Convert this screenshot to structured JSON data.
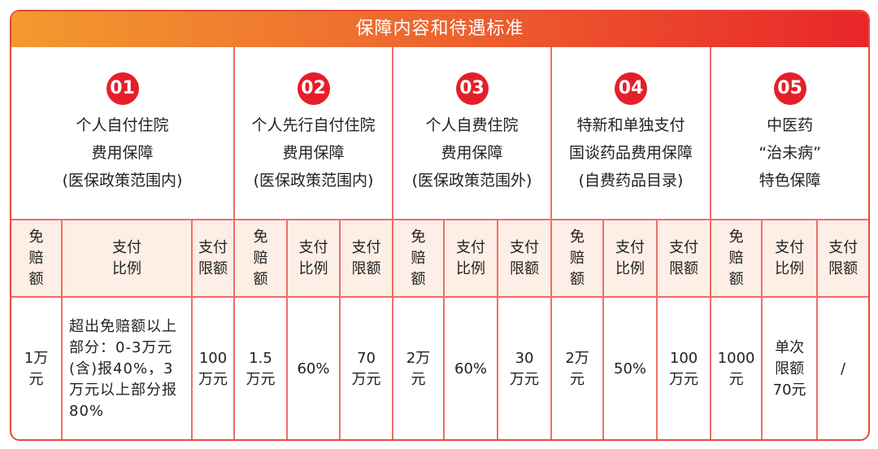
{
  "title": "保障内容和待遇标准",
  "categories": [
    {
      "num": "01",
      "lines": [
        "个人自付住院",
        "费用保障",
        "(医保政策范围内)"
      ]
    },
    {
      "num": "02",
      "lines": [
        "个人先行自付住院",
        "费用保障",
        "(医保政策范围内)"
      ]
    },
    {
      "num": "03",
      "lines": [
        "个人自费住院",
        "费用保障",
        "(医保政策范围外)"
      ]
    },
    {
      "num": "04",
      "lines": [
        "特新和单独支付",
        "国谈药品费用保障",
        "(自费药品目录)"
      ]
    },
    {
      "num": "05",
      "lines": [
        "中医药",
        "“治未病”",
        "特色保障"
      ]
    }
  ],
  "subheaders": {
    "deductible": [
      "免",
      "赔",
      "额"
    ],
    "ratio": [
      "支付",
      "比例"
    ],
    "limit": [
      "支付",
      "限额"
    ]
  },
  "values": {
    "c1": {
      "deductible": [
        "1万",
        "元"
      ],
      "ratio": "超出免赔额以上部分：0-3万元(含)报40%，3万元以上部分报80%",
      "limit": [
        "100",
        "万元"
      ]
    },
    "c2": {
      "deductible": [
        "1.5",
        "万元"
      ],
      "ratio": [
        "60%"
      ],
      "limit": [
        "70",
        "万元"
      ]
    },
    "c3": {
      "deductible": [
        "2万",
        "元"
      ],
      "ratio": [
        "60%"
      ],
      "limit": [
        "30",
        "万元"
      ]
    },
    "c4": {
      "deductible": [
        "2万",
        "元"
      ],
      "ratio": [
        "50%"
      ],
      "limit": [
        "100",
        "万元"
      ]
    },
    "c5": {
      "deductible": [
        "1000",
        "元"
      ],
      "ratio": [
        "单次",
        "限额",
        "70元"
      ],
      "limit": [
        "/"
      ]
    }
  },
  "colors": {
    "accent_red": "#e51f2a",
    "header_orange": "#f39a2f",
    "border": "#ee6f66",
    "subheader_bg": "#fdeee6"
  }
}
